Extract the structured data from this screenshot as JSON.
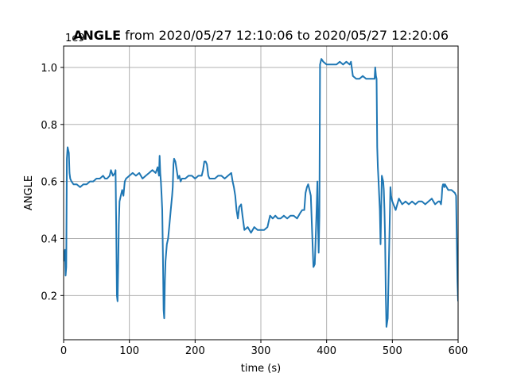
{
  "chart_data": {
    "type": "line",
    "title_bold": "ANGLE",
    "title_rest": " from 2020/05/27 12:10:06 to 2020/05/27 12:20:06",
    "xlabel": "time (s)",
    "ylabel": "ANGLE",
    "y_offset_label": "1e9",
    "xlim": [
      0,
      600
    ],
    "ylim": [
      0.045,
      1.075
    ],
    "xticks": [
      0,
      100,
      200,
      300,
      400,
      500,
      600
    ],
    "yticks": [
      0.2,
      0.4,
      0.6,
      0.8,
      1.0
    ],
    "xtick_labels": [
      "0",
      "100",
      "200",
      "300",
      "400",
      "500",
      "600"
    ],
    "ytick_labels": [
      "0.2",
      "0.4",
      "0.6",
      "0.8",
      "1.0"
    ],
    "grid": true,
    "line_color": "#1f77b4",
    "series": [
      {
        "x": [
          0,
          2,
          3,
          4,
          5,
          6,
          7,
          8,
          9,
          10,
          12,
          15,
          20,
          25,
          30,
          35,
          40,
          45,
          50,
          55,
          60,
          63,
          66,
          70,
          72,
          75,
          78,
          79,
          80,
          81,
          82,
          83,
          84,
          85,
          87,
          89,
          91,
          93,
          95,
          100,
          105,
          110,
          115,
          120,
          125,
          130,
          135,
          140,
          143,
          145,
          146,
          147,
          148,
          149,
          150,
          151,
          152,
          153,
          154,
          155,
          157,
          159,
          161,
          163,
          165,
          166,
          167,
          168,
          170,
          172,
          174,
          176,
          178,
          180,
          185,
          190,
          195,
          200,
          205,
          210,
          212,
          214,
          216,
          218,
          220,
          222,
          224,
          230,
          235,
          240,
          245,
          250,
          255,
          257,
          259,
          261,
          263,
          265,
          267,
          270,
          272,
          275,
          280,
          285,
          290,
          295,
          300,
          305,
          310,
          312,
          314,
          318,
          322,
          326,
          330,
          335,
          340,
          345,
          350,
          355,
          360,
          363,
          366,
          368,
          370,
          372,
          374,
          376,
          378,
          380,
          382,
          384,
          385,
          386,
          387,
          388,
          389,
          390,
          392,
          395,
          400,
          405,
          410,
          415,
          420,
          425,
          430,
          435,
          437,
          440,
          445,
          450,
          455,
          460,
          465,
          470,
          473,
          474,
          475,
          476,
          477,
          478,
          479,
          480,
          481,
          482,
          484,
          486,
          487,
          488,
          489,
          490,
          491,
          493,
          495,
          497,
          498,
          500,
          505,
          510,
          515,
          520,
          525,
          530,
          535,
          540,
          545,
          550,
          555,
          560,
          565,
          570,
          572,
          574,
          575,
          576,
          577,
          578,
          579,
          580,
          585,
          590,
          595,
          597,
          598,
          599,
          600
        ],
        "y": [
          0.32,
          0.36,
          0.27,
          0.3,
          0.68,
          0.72,
          0.71,
          0.7,
          0.63,
          0.61,
          0.6,
          0.59,
          0.59,
          0.58,
          0.59,
          0.59,
          0.6,
          0.6,
          0.61,
          0.61,
          0.62,
          0.61,
          0.61,
          0.62,
          0.64,
          0.62,
          0.63,
          0.64,
          0.45,
          0.2,
          0.18,
          0.3,
          0.45,
          0.53,
          0.55,
          0.57,
          0.55,
          0.6,
          0.61,
          0.62,
          0.63,
          0.62,
          0.63,
          0.61,
          0.62,
          0.63,
          0.64,
          0.63,
          0.65,
          0.62,
          0.69,
          0.63,
          0.6,
          0.55,
          0.5,
          0.35,
          0.15,
          0.12,
          0.25,
          0.32,
          0.38,
          0.4,
          0.45,
          0.5,
          0.55,
          0.58,
          0.66,
          0.68,
          0.67,
          0.64,
          0.61,
          0.62,
          0.6,
          0.61,
          0.61,
          0.62,
          0.62,
          0.61,
          0.62,
          0.62,
          0.64,
          0.67,
          0.67,
          0.66,
          0.62,
          0.61,
          0.61,
          0.61,
          0.62,
          0.62,
          0.61,
          0.62,
          0.63,
          0.6,
          0.58,
          0.55,
          0.5,
          0.47,
          0.51,
          0.52,
          0.48,
          0.43,
          0.44,
          0.42,
          0.44,
          0.43,
          0.43,
          0.43,
          0.44,
          0.46,
          0.48,
          0.47,
          0.48,
          0.47,
          0.47,
          0.48,
          0.47,
          0.48,
          0.48,
          0.47,
          0.49,
          0.5,
          0.5,
          0.56,
          0.58,
          0.59,
          0.57,
          0.55,
          0.42,
          0.3,
          0.31,
          0.44,
          0.52,
          0.6,
          0.45,
          0.35,
          0.48,
          1.01,
          1.03,
          1.02,
          1.01,
          1.01,
          1.01,
          1.01,
          1.02,
          1.01,
          1.02,
          1.01,
          1.02,
          0.97,
          0.96,
          0.96,
          0.97,
          0.96,
          0.96,
          0.96,
          0.96,
          1.0,
          0.97,
          0.96,
          0.72,
          0.65,
          0.6,
          0.55,
          0.5,
          0.38,
          0.62,
          0.6,
          0.57,
          0.5,
          0.4,
          0.2,
          0.09,
          0.12,
          0.35,
          0.58,
          0.55,
          0.53,
          0.5,
          0.54,
          0.52,
          0.53,
          0.52,
          0.53,
          0.52,
          0.53,
          0.53,
          0.52,
          0.53,
          0.54,
          0.52,
          0.53,
          0.53,
          0.52,
          0.54,
          0.58,
          0.59,
          0.59,
          0.58,
          0.59,
          0.57,
          0.57,
          0.56,
          0.55,
          0.4,
          0.25,
          0.18
        ]
      }
    ]
  }
}
